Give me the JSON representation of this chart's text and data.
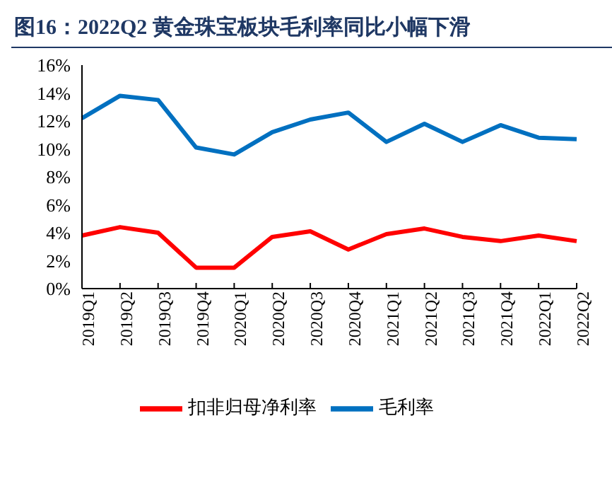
{
  "chart_data": {
    "type": "line",
    "title": "图16：2022Q2 黄金珠宝板块毛利率同比小幅下滑",
    "categories": [
      "2019Q1",
      "2019Q2",
      "2019Q3",
      "2019Q4",
      "2020Q1",
      "2020Q2",
      "2020Q3",
      "2020Q4",
      "2021Q1",
      "2021Q2",
      "2021Q3",
      "2021Q4",
      "2022Q1",
      "2022Q2"
    ],
    "series": [
      {
        "name": "毛利率",
        "color": "#0070c0",
        "values": [
          12.2,
          13.8,
          13.5,
          10.1,
          9.6,
          11.2,
          12.1,
          12.6,
          10.5,
          11.8,
          10.5,
          11.7,
          10.8,
          10.7
        ]
      },
      {
        "name": "扣非归母净利率",
        "color": "#ff0000",
        "values": [
          3.8,
          4.4,
          4.0,
          1.5,
          1.5,
          3.7,
          4.1,
          2.8,
          3.9,
          4.3,
          3.7,
          3.4,
          3.8,
          3.4
        ]
      }
    ],
    "ylim": [
      0,
      16
    ],
    "yticks": [
      {
        "value": 0,
        "label": "0%"
      },
      {
        "value": 2,
        "label": "2%"
      },
      {
        "value": 4,
        "label": "4%"
      },
      {
        "value": 6,
        "label": "6%"
      },
      {
        "value": 8,
        "label": "8%"
      },
      {
        "value": 10,
        "label": "10%"
      },
      {
        "value": 12,
        "label": "12%"
      },
      {
        "value": 14,
        "label": "14%"
      },
      {
        "value": 16,
        "label": "16%"
      }
    ],
    "grid": false,
    "legend": "bottom",
    "marker": "none",
    "line_style": "solid"
  }
}
